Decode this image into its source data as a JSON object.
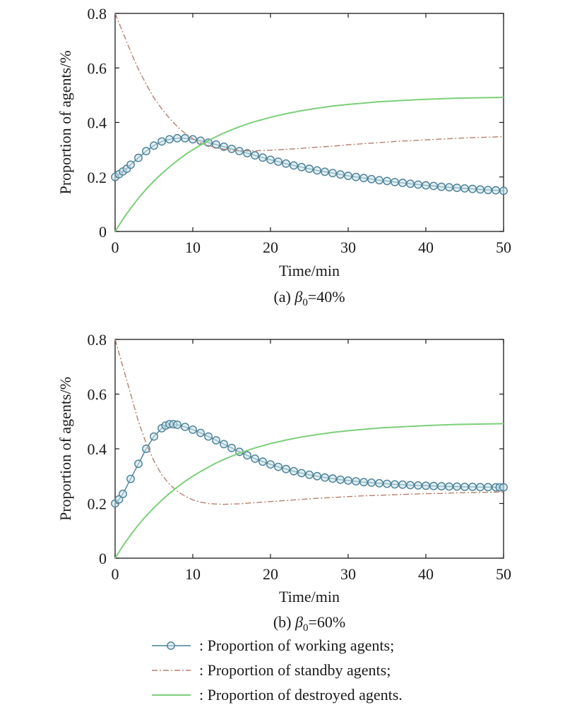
{
  "chart_data": [
    {
      "type": "line",
      "caption": {
        "prefix": "(a) ",
        "symbol": "β",
        "sub": "0",
        "suffix": "=40%"
      },
      "xlabel": "Time/min",
      "ylabel": "Proportion of agents/%",
      "xlim": [
        0,
        50
      ],
      "ylim": [
        0,
        0.8
      ],
      "xticks": [
        0,
        10,
        20,
        30,
        40,
        50
      ],
      "yticks": [
        0,
        0.2,
        0.4,
        0.6,
        0.8
      ],
      "xtick_labels": [
        "0",
        "10",
        "20",
        "30",
        "40",
        "50"
      ],
      "ytick_labels": [
        "0",
        "0.2",
        "0.4",
        "0.6",
        "0.8"
      ],
      "grid": false,
      "series": [
        {
          "key": "working",
          "x": [
            0,
            0.5,
            1,
            1.5,
            2,
            3,
            4,
            5,
            6,
            7,
            8,
            9,
            10,
            11,
            12,
            13,
            14,
            15,
            16,
            17,
            18,
            19,
            20,
            21,
            22,
            23,
            24,
            25,
            26,
            27,
            28,
            29,
            30,
            31,
            32,
            33,
            34,
            35,
            36,
            37,
            38,
            39,
            40,
            41,
            42,
            43,
            44,
            45,
            46,
            47,
            48,
            49,
            50
          ],
          "y": [
            0.2,
            0.21,
            0.22,
            0.23,
            0.245,
            0.27,
            0.295,
            0.315,
            0.33,
            0.338,
            0.342,
            0.342,
            0.338,
            0.333,
            0.326,
            0.319,
            0.311,
            0.303,
            0.295,
            0.287,
            0.279,
            0.271,
            0.263,
            0.256,
            0.249,
            0.242,
            0.236,
            0.23,
            0.224,
            0.219,
            0.214,
            0.209,
            0.204,
            0.2,
            0.196,
            0.192,
            0.188,
            0.185,
            0.181,
            0.178,
            0.175,
            0.172,
            0.169,
            0.167,
            0.164,
            0.162,
            0.16,
            0.158,
            0.156,
            0.154,
            0.152,
            0.151,
            0.149
          ]
        },
        {
          "key": "standby",
          "x": [
            0,
            1,
            2,
            3,
            4,
            5,
            6,
            7,
            8,
            9,
            10,
            11,
            12,
            13,
            14,
            15,
            16,
            17,
            18,
            19,
            20,
            22,
            24,
            26,
            28,
            30,
            32,
            34,
            36,
            38,
            40,
            42,
            44,
            46,
            48,
            50
          ],
          "y": [
            0.8,
            0.73,
            0.66,
            0.595,
            0.54,
            0.49,
            0.45,
            0.415,
            0.385,
            0.36,
            0.34,
            0.325,
            0.315,
            0.307,
            0.302,
            0.299,
            0.297,
            0.296,
            0.296,
            0.297,
            0.298,
            0.301,
            0.305,
            0.309,
            0.313,
            0.318,
            0.322,
            0.326,
            0.33,
            0.333,
            0.336,
            0.339,
            0.342,
            0.344,
            0.346,
            0.348
          ]
        },
        {
          "key": "destroyed",
          "x": [
            0,
            1,
            2,
            3,
            4,
            5,
            6,
            7,
            8,
            9,
            10,
            11,
            12,
            13,
            14,
            15,
            16,
            17,
            18,
            19,
            20,
            22,
            24,
            26,
            28,
            30,
            32,
            34,
            36,
            38,
            40,
            42,
            44,
            46,
            48,
            50
          ],
          "y": [
            0.0,
            0.045,
            0.085,
            0.122,
            0.155,
            0.185,
            0.212,
            0.237,
            0.26,
            0.281,
            0.3,
            0.317,
            0.333,
            0.348,
            0.361,
            0.373,
            0.384,
            0.394,
            0.403,
            0.411,
            0.419,
            0.432,
            0.443,
            0.452,
            0.46,
            0.466,
            0.471,
            0.476,
            0.479,
            0.482,
            0.485,
            0.487,
            0.489,
            0.49,
            0.491,
            0.492
          ]
        }
      ]
    },
    {
      "type": "line",
      "caption": {
        "prefix": "(b) ",
        "symbol": "β",
        "sub": "0",
        "suffix": "=60%"
      },
      "xlabel": "Time/min",
      "ylabel": "Proportion of agents/%",
      "xlim": [
        0,
        50
      ],
      "ylim": [
        0,
        0.8
      ],
      "xticks": [
        0,
        10,
        20,
        30,
        40,
        50
      ],
      "yticks": [
        0,
        0.2,
        0.4,
        0.6,
        0.8
      ],
      "xtick_labels": [
        "0",
        "10",
        "20",
        "30",
        "40",
        "50"
      ],
      "ytick_labels": [
        "0",
        "0.2",
        "0.4",
        "0.6",
        "0.8"
      ],
      "grid": false,
      "series": [
        {
          "key": "working",
          "x": [
            0,
            0.5,
            1,
            2,
            3,
            4,
            5,
            6,
            6.5,
            7,
            7.5,
            8,
            9,
            10,
            11,
            12,
            13,
            14,
            15,
            16,
            17,
            18,
            19,
            20,
            21,
            22,
            23,
            24,
            25,
            26,
            27,
            28,
            29,
            30,
            31,
            32,
            33,
            34,
            35,
            36,
            37,
            38,
            39,
            40,
            41,
            42,
            43,
            44,
            45,
            46,
            47,
            48,
            49,
            49.5,
            50
          ],
          "y": [
            0.2,
            0.215,
            0.235,
            0.29,
            0.345,
            0.4,
            0.445,
            0.475,
            0.485,
            0.49,
            0.49,
            0.488,
            0.48,
            0.47,
            0.458,
            0.445,
            0.431,
            0.417,
            0.403,
            0.389,
            0.376,
            0.364,
            0.353,
            0.343,
            0.334,
            0.326,
            0.318,
            0.311,
            0.305,
            0.3,
            0.295,
            0.291,
            0.287,
            0.284,
            0.281,
            0.278,
            0.276,
            0.274,
            0.272,
            0.27,
            0.269,
            0.267,
            0.266,
            0.265,
            0.264,
            0.263,
            0.262,
            0.262,
            0.261,
            0.261,
            0.26,
            0.26,
            0.259,
            0.259,
            0.259
          ]
        },
        {
          "key": "standby",
          "x": [
            0,
            1,
            2,
            3,
            4,
            5,
            6,
            7,
            8,
            9,
            10,
            11,
            12,
            13,
            14,
            15,
            16,
            18,
            20,
            22,
            24,
            26,
            28,
            30,
            32,
            34,
            36,
            38,
            40,
            42,
            44,
            46,
            48,
            50
          ],
          "y": [
            0.8,
            0.7,
            0.6,
            0.5,
            0.42,
            0.355,
            0.305,
            0.27,
            0.245,
            0.227,
            0.213,
            0.205,
            0.2,
            0.198,
            0.197,
            0.198,
            0.199,
            0.203,
            0.207,
            0.211,
            0.215,
            0.219,
            0.222,
            0.225,
            0.228,
            0.23,
            0.232,
            0.234,
            0.236,
            0.237,
            0.239,
            0.24,
            0.241,
            0.242
          ]
        },
        {
          "key": "destroyed",
          "x": [
            0,
            1,
            2,
            3,
            4,
            5,
            6,
            7,
            8,
            9,
            10,
            11,
            12,
            13,
            14,
            15,
            16,
            17,
            18,
            19,
            20,
            22,
            24,
            26,
            28,
            30,
            32,
            34,
            36,
            38,
            40,
            42,
            44,
            46,
            48,
            50
          ],
          "y": [
            0.0,
            0.045,
            0.085,
            0.122,
            0.155,
            0.185,
            0.212,
            0.237,
            0.26,
            0.281,
            0.3,
            0.317,
            0.333,
            0.348,
            0.361,
            0.373,
            0.384,
            0.394,
            0.403,
            0.411,
            0.419,
            0.432,
            0.443,
            0.452,
            0.46,
            0.466,
            0.471,
            0.476,
            0.479,
            0.482,
            0.485,
            0.487,
            0.489,
            0.49,
            0.491,
            0.492
          ]
        }
      ]
    }
  ],
  "legend": {
    "placement": "bottom",
    "items": [
      {
        "key": "working",
        "label": ": Proportion of working agents;"
      },
      {
        "key": "standby",
        "label": ": Proportion of standby agents;"
      },
      {
        "key": "destroyed",
        "label": ": Proportion of destroyed agents."
      }
    ]
  },
  "styles": {
    "working": {
      "color": "#4a7f96",
      "marker": "circle",
      "marker_color": "#4a7f96",
      "marker_fill": "#c8e1ea",
      "dash": ""
    },
    "standby": {
      "color": "#b5806d",
      "dash": "8,3,2,3"
    },
    "destroyed": {
      "color": "#7ccf7a",
      "dash": ""
    },
    "axis_color": "#1a1a1a",
    "text_color": "#1a1a1a"
  }
}
